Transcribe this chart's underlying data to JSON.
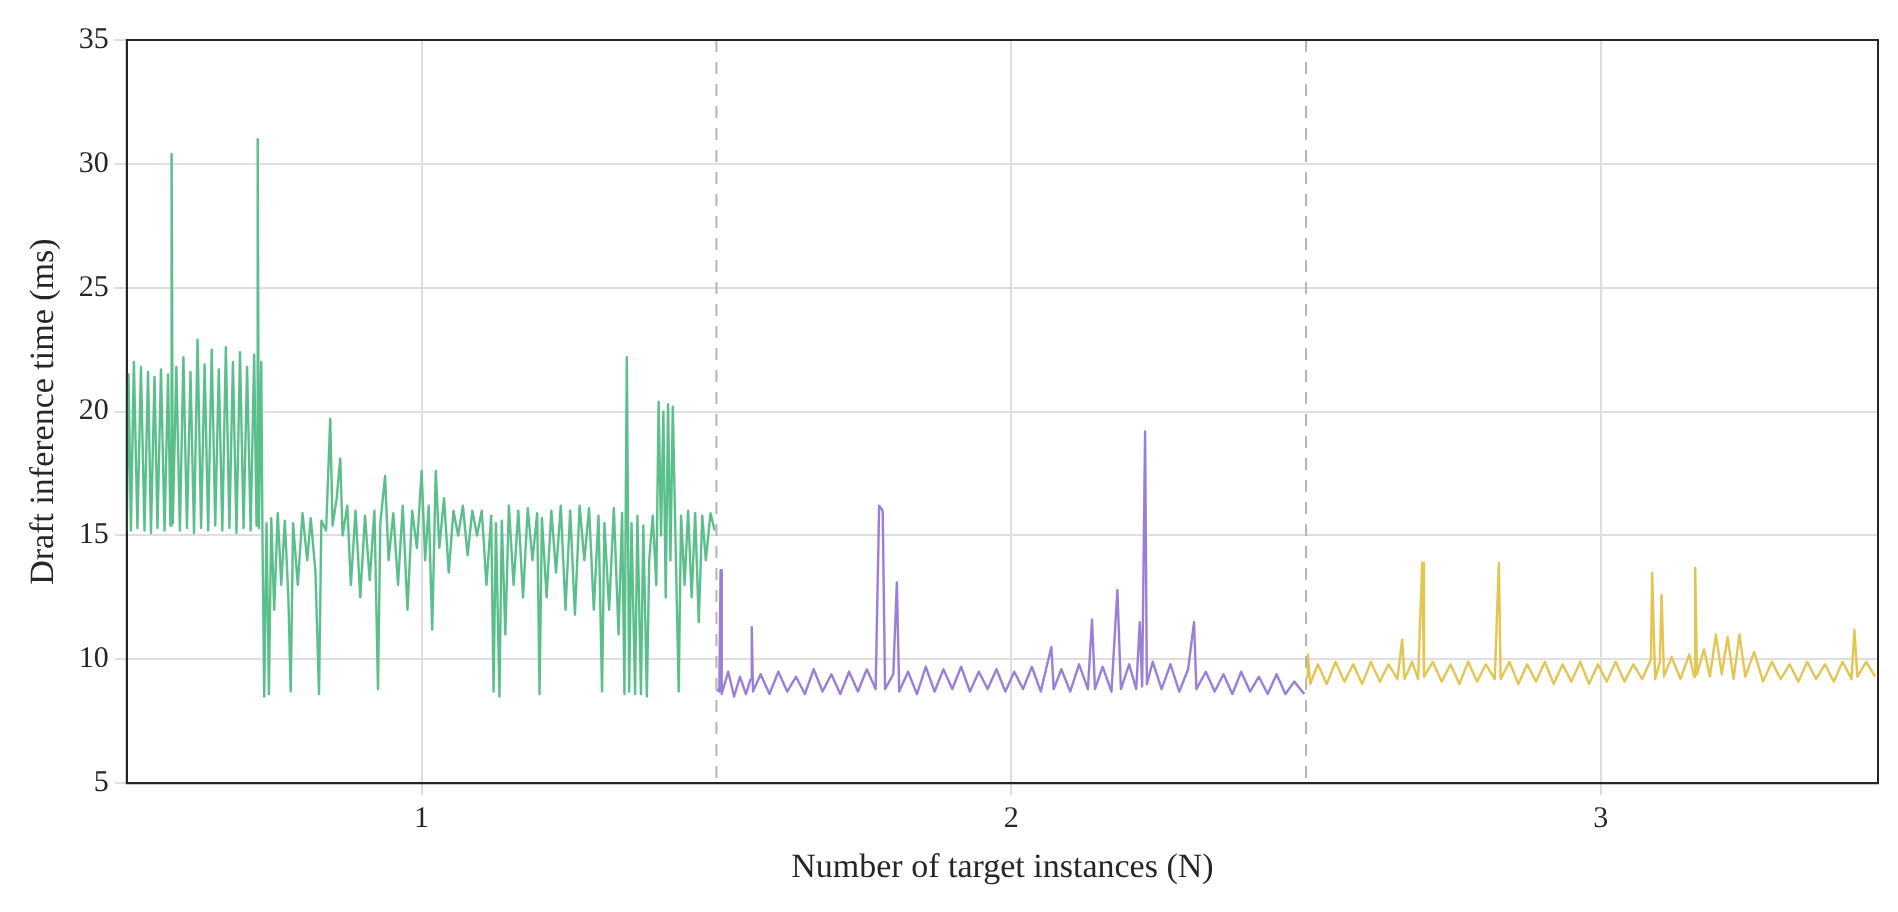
{
  "chart_data": {
    "type": "line",
    "xlabel": "Number of target instances (N)",
    "ylabel": "Draft inference time (ms)",
    "xlim": [
      0.5,
      3.47
    ],
    "xticks": [
      1,
      2,
      3
    ],
    "ylim": [
      5,
      35
    ],
    "yticks": [
      5,
      10,
      15,
      20,
      25,
      30,
      35
    ],
    "grid": true,
    "legend": false,
    "marker": "none",
    "ref_lines": [
      {
        "axis": "x",
        "value": 1.5,
        "color": "#b4b4b4",
        "line_style": "dashed"
      },
      {
        "axis": "x",
        "value": 2.5,
        "color": "#b4b4b4",
        "line_style": "dashed"
      }
    ],
    "series": [
      {
        "color": "#5bbf8b",
        "x": [
          0.5,
          0.503,
          0.507,
          0.512,
          0.518,
          0.524,
          0.53,
          0.536,
          0.541,
          0.547,
          0.552,
          0.558,
          0.564,
          0.57,
          0.574,
          0.576,
          0.578,
          0.584,
          0.59,
          0.596,
          0.602,
          0.608,
          0.614,
          0.62,
          0.626,
          0.632,
          0.638,
          0.644,
          0.65,
          0.656,
          0.662,
          0.668,
          0.674,
          0.68,
          0.686,
          0.692,
          0.698,
          0.704,
          0.71,
          0.716,
          0.72,
          0.722,
          0.724,
          0.728,
          0.73,
          0.733,
          0.737,
          0.741,
          0.745,
          0.75,
          0.756,
          0.762,
          0.768,
          0.774,
          0.778,
          0.782,
          0.79,
          0.798,
          0.806,
          0.812,
          0.82,
          0.826,
          0.83,
          0.838,
          0.845,
          0.849,
          0.856,
          0.862,
          0.866,
          0.874,
          0.88,
          0.888,
          0.896,
          0.904,
          0.912,
          0.92,
          0.926,
          0.93,
          0.938,
          0.944,
          0.952,
          0.96,
          0.968,
          0.976,
          0.984,
          0.992,
          1.0,
          1.006,
          1.012,
          1.018,
          1.024,
          1.03,
          1.038,
          1.046,
          1.054,
          1.062,
          1.07,
          1.078,
          1.086,
          1.094,
          1.102,
          1.11,
          1.118,
          1.122,
          1.126,
          1.132,
          1.136,
          1.142,
          1.148,
          1.156,
          1.164,
          1.172,
          1.18,
          1.188,
          1.196,
          1.2,
          1.204,
          1.212,
          1.22,
          1.228,
          1.236,
          1.244,
          1.252,
          1.26,
          1.268,
          1.276,
          1.284,
          1.292,
          1.3,
          1.306,
          1.31,
          1.318,
          1.326,
          1.334,
          1.34,
          1.344,
          1.348,
          1.352,
          1.356,
          1.362,
          1.366,
          1.372,
          1.376,
          1.382,
          1.386,
          1.392,
          1.398,
          1.402,
          1.406,
          1.41,
          1.414,
          1.418,
          1.422,
          1.426,
          1.43,
          1.436,
          1.44,
          1.446,
          1.452,
          1.458,
          1.464,
          1.47,
          1.476,
          1.482,
          1.49,
          1.497
        ],
        "values": [
          15.2,
          21.5,
          15.2,
          22,
          15.3,
          21.8,
          15.2,
          21.6,
          15.1,
          21.4,
          15.3,
          21.7,
          15.2,
          21.5,
          15.4,
          30.4,
          15.5,
          21.8,
          15.2,
          22.2,
          15.3,
          21.6,
          15.1,
          22.9,
          15.3,
          21.9,
          15.2,
          22.5,
          15.4,
          21.7,
          15.2,
          22.6,
          15.3,
          22.0,
          15.1,
          22.4,
          15.3,
          21.8,
          15.2,
          22.3,
          15.4,
          31.0,
          15.3,
          22.0,
          15.2,
          8.5,
          15.5,
          8.6,
          15.7,
          12.0,
          15.9,
          13.0,
          15.6,
          12.5,
          8.7,
          15.5,
          13.0,
          15.9,
          14.0,
          15.7,
          13.5,
          8.6,
          15.6,
          15.2,
          19.7,
          15.4,
          16.5,
          18.1,
          15.0,
          16.2,
          13.0,
          16.0,
          12.5,
          15.8,
          13.2,
          16.0,
          8.8,
          15.5,
          17.4,
          14.0,
          15.9,
          13.0,
          16.2,
          12.0,
          16.0,
          14.5,
          17.6,
          14.0,
          16.2,
          11.2,
          17.6,
          14.5,
          16.5,
          13.5,
          16.0,
          15.0,
          16.2,
          14.2,
          16.0,
          15.0,
          16.0,
          13.0,
          15.8,
          8.7,
          15.5,
          8.5,
          15.6,
          11.0,
          16.2,
          13.0,
          16.0,
          12.5,
          16.1,
          14.0,
          15.9,
          8.6,
          15.7,
          12.5,
          16.0,
          13.5,
          16.2,
          12.0,
          16.0,
          11.8,
          16.2,
          14.0,
          16.1,
          12.0,
          15.8,
          8.7,
          15.5,
          12.0,
          16.1,
          11.0,
          15.9,
          8.6,
          22.2,
          8.7,
          15.5,
          8.6,
          15.8,
          8.6,
          15.4,
          8.5,
          14.0,
          15.8,
          13.0,
          20.4,
          15.0,
          20.0,
          12.5,
          20.3,
          14.0,
          20.2,
          15.5,
          8.7,
          15.8,
          13.0,
          16.0,
          12.5,
          15.9,
          11.5,
          15.8,
          14.0,
          15.9,
          15.2
        ]
      },
      {
        "color": "#9b7fd6",
        "x": [
          1.5,
          1.505,
          1.507,
          1.509,
          1.52,
          1.53,
          1.54,
          1.55,
          1.558,
          1.56,
          1.562,
          1.575,
          1.59,
          1.605,
          1.62,
          1.635,
          1.65,
          1.665,
          1.68,
          1.695,
          1.71,
          1.725,
          1.74,
          1.755,
          1.77,
          1.776,
          1.782,
          1.786,
          1.8,
          1.806,
          1.81,
          1.825,
          1.84,
          1.855,
          1.87,
          1.885,
          1.9,
          1.915,
          1.93,
          1.945,
          1.96,
          1.975,
          1.99,
          2.005,
          2.02,
          2.035,
          2.05,
          2.068,
          2.072,
          2.085,
          2.1,
          2.115,
          2.13,
          2.137,
          2.142,
          2.155,
          2.17,
          2.18,
          2.186,
          2.2,
          2.212,
          2.218,
          2.222,
          2.227,
          2.23,
          2.24,
          2.255,
          2.27,
          2.285,
          2.3,
          2.31,
          2.314,
          2.33,
          2.345,
          2.36,
          2.375,
          2.39,
          2.405,
          2.42,
          2.435,
          2.45,
          2.465,
          2.48,
          2.497
        ],
        "values": [
          8.8,
          8.7,
          13.6,
          8.6,
          9.5,
          8.5,
          9.3,
          8.6,
          9.2,
          11.3,
          8.7,
          9.4,
          8.6,
          9.5,
          8.7,
          9.3,
          8.6,
          9.6,
          8.7,
          9.4,
          8.6,
          9.5,
          8.7,
          9.6,
          8.8,
          16.2,
          16.0,
          8.8,
          9.4,
          13.1,
          8.7,
          9.5,
          8.6,
          9.7,
          8.7,
          9.6,
          8.8,
          9.7,
          8.7,
          9.5,
          8.8,
          9.6,
          8.7,
          9.5,
          8.8,
          9.7,
          8.7,
          10.5,
          8.8,
          9.6,
          8.7,
          9.8,
          8.8,
          11.6,
          8.8,
          9.7,
          8.7,
          12.8,
          8.8,
          9.8,
          8.8,
          11.5,
          8.9,
          19.2,
          9.0,
          9.9,
          8.8,
          9.8,
          8.7,
          9.6,
          11.5,
          8.8,
          9.5,
          8.7,
          9.4,
          8.6,
          9.5,
          8.7,
          9.3,
          8.6,
          9.4,
          8.6,
          9.1,
          8.6
        ]
      },
      {
        "color": "#e3c552",
        "x": [
          2.5,
          2.503,
          2.507,
          2.52,
          2.535,
          2.55,
          2.565,
          2.58,
          2.595,
          2.61,
          2.625,
          2.64,
          2.655,
          2.663,
          2.667,
          2.68,
          2.69,
          2.697,
          2.7,
          2.715,
          2.73,
          2.745,
          2.76,
          2.775,
          2.79,
          2.805,
          2.82,
          2.827,
          2.83,
          2.845,
          2.86,
          2.875,
          2.89,
          2.905,
          2.92,
          2.935,
          2.95,
          2.965,
          2.98,
          2.995,
          3.01,
          3.025,
          3.04,
          3.055,
          3.07,
          3.085,
          3.087,
          3.092,
          3.1,
          3.103,
          3.107,
          3.12,
          3.135,
          3.15,
          3.158,
          3.16,
          3.163,
          3.175,
          3.185,
          3.195,
          3.205,
          3.215,
          3.225,
          3.235,
          3.245,
          3.26,
          3.275,
          3.29,
          3.305,
          3.32,
          3.335,
          3.35,
          3.365,
          3.38,
          3.395,
          3.41,
          3.425,
          3.43,
          3.435,
          3.45,
          3.465
        ],
        "values": [
          9.3,
          10.2,
          9.0,
          9.8,
          9.0,
          9.9,
          9.1,
          9.8,
          9.0,
          9.9,
          9.1,
          9.8,
          9.2,
          10.8,
          9.2,
          9.9,
          9.2,
          13.9,
          9.3,
          9.9,
          9.1,
          9.8,
          9.0,
          9.9,
          9.1,
          9.8,
          9.2,
          13.9,
          9.2,
          9.9,
          9.0,
          9.8,
          9.1,
          9.9,
          9.0,
          9.8,
          9.1,
          9.9,
          9.0,
          9.8,
          9.1,
          9.9,
          9.1,
          9.8,
          9.2,
          10.0,
          13.5,
          9.2,
          9.9,
          12.6,
          9.3,
          10.1,
          9.2,
          10.2,
          9.3,
          13.7,
          9.4,
          10.4,
          9.3,
          11.0,
          9.4,
          10.9,
          9.2,
          11.0,
          9.3,
          10.3,
          9.1,
          9.9,
          9.2,
          9.8,
          9.1,
          9.9,
          9.2,
          9.8,
          9.1,
          9.9,
          9.2,
          11.2,
          9.3,
          9.9,
          9.3
        ]
      }
    ]
  }
}
